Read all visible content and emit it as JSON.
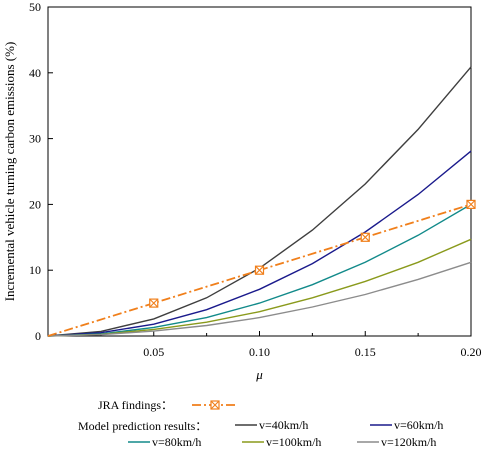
{
  "chart_data": {
    "type": "line",
    "title": "",
    "xlabel": "μ",
    "ylabel": "Incremental vehicle turning  carbon emissions (%)",
    "xlim": [
      0,
      0.2
    ],
    "ylim": [
      0,
      50
    ],
    "x_ticks": [
      0.05,
      0.1,
      0.15,
      0.2
    ],
    "x_tick_labels": [
      "0.05",
      "0.10",
      "0.15",
      "0.20"
    ],
    "y_ticks": [
      0,
      10,
      20,
      30,
      40,
      50
    ],
    "y_tick_labels": [
      "0",
      "10",
      "20",
      "30",
      "40",
      "50"
    ],
    "grid": false,
    "legend_position": "bottom",
    "jra": {
      "label": "JRA findings：",
      "color": "#f07f1b",
      "x": [
        0,
        0.05,
        0.1,
        0.15,
        0.2
      ],
      "y": [
        0,
        5,
        10,
        15,
        20
      ],
      "marked_x": [
        0.05,
        0.1,
        0.15,
        0.2
      ]
    },
    "model_label": "Model prediction results：",
    "x": [
      0,
      0.025,
      0.05,
      0.075,
      0.1,
      0.125,
      0.15,
      0.175,
      0.2
    ],
    "series": [
      {
        "name": "v=40km/h",
        "color": "#3f3f3f",
        "values": [
          0,
          0.7,
          2.6,
          5.8,
          10.3,
          16.1,
          23.1,
          31.4,
          40.9
        ]
      },
      {
        "name": "v=60km/h",
        "color": "#1a1a8c",
        "values": [
          0,
          0.5,
          1.8,
          4.0,
          7.1,
          11.0,
          15.8,
          21.5,
          28.1
        ]
      },
      {
        "name": "v=80km/h",
        "color": "#128a8a",
        "values": [
          0,
          0.3,
          1.3,
          2.8,
          5.0,
          7.8,
          11.2,
          15.3,
          20.0
        ]
      },
      {
        "name": "v=100km/h",
        "color": "#8a9a1c",
        "values": [
          0,
          0.25,
          1.0,
          2.1,
          3.7,
          5.8,
          8.3,
          11.2,
          14.7
        ]
      },
      {
        "name": "v=120km/h",
        "color": "#8c8c8c",
        "values": [
          0,
          0.2,
          0.75,
          1.6,
          2.8,
          4.4,
          6.3,
          8.6,
          11.2
        ]
      }
    ]
  }
}
